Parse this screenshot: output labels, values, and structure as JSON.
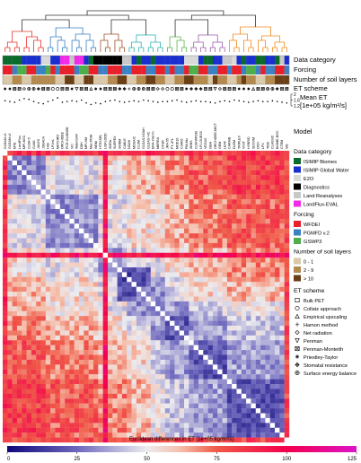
{
  "chart_data": {
    "type": "heatmap",
    "n_models": 60,
    "column_labels": [
      "GLEAM v3",
      "GLEAM v2",
      "MTE",
      "LandFlux",
      "MPI-BGC",
      "CLM4.5",
      "CLM4",
      "JULES",
      "JSBACH",
      "H08",
      "LPJmL",
      "MATSIRO",
      "ORCHIDEE",
      "PCR-GLOBWB",
      "VIC",
      "WaterGAP",
      "DBH",
      "MPI-HM",
      "Mac-PDM",
      "WBM",
      "HTESSEL",
      "LISFLOOD",
      "W3RA",
      "SURFEX",
      "SWBM",
      "CABLE",
      "NOAH",
      "MOSAIC",
      "CLSM",
      "GLDAS-NOAH",
      "GLDAS-VIC",
      "ERA-Interim",
      "MERRA",
      "CFSR",
      "JRA-55",
      "PT-JPL",
      "MOD16",
      "CSIRO",
      "PM-Mu",
      "SEBS",
      "CLM-WFDEI",
      "LPJ-GUESS",
      "VEGAS",
      "ISBA",
      "ORCHIDEE-MICT",
      "GEM",
      "LEAF",
      "CARAIB",
      "DLEM",
      "TRIPLEX",
      "VISIT",
      "HYBRID",
      "SDGVM",
      "OCN",
      "LPX",
      "TEM",
      "CLASSIC",
      "BIOME-BGC",
      "CTEM",
      "SiB"
    ],
    "rows": [
      "Data category",
      "Forcing",
      "Number of soil layers",
      "ET scheme",
      "Mean ET\n[1e+05 kg/m²/s]"
    ],
    "matrix_title": "Model",
    "colorbar_label": "Euclidean differences in ET [1e+05 kg/m²/s]",
    "colorbar_ticks": [
      0,
      25,
      50,
      75,
      100,
      125
    ],
    "colorbar_range": [
      0,
      125
    ],
    "mean_et_axis_ticks": [
      1.2,
      1.6,
      2
    ],
    "clusters": [
      {
        "start": 0,
        "end": 9,
        "color": "#e5362b"
      },
      {
        "start": 9,
        "end": 20,
        "color": "#3a7fc0"
      },
      {
        "start": 20,
        "end": 26,
        "color": "#a0522d"
      },
      {
        "start": 26,
        "end": 34,
        "color": "#2ab3b0"
      },
      {
        "start": 34,
        "end": 39,
        "color": "#5eb14e"
      },
      {
        "start": 39,
        "end": 47,
        "color": "#9b5ea8"
      },
      {
        "start": 47,
        "end": 60,
        "color": "#ef8a1f"
      }
    ],
    "data_category": [
      0,
      0,
      0,
      0,
      1,
      1,
      1,
      1,
      2,
      2,
      1,
      1,
      5,
      5,
      4,
      5,
      5,
      1,
      0,
      3,
      3,
      3,
      3,
      3,
      3,
      4,
      4,
      1,
      0,
      1,
      1,
      0,
      1,
      1,
      1,
      1,
      1,
      1,
      2,
      2,
      2,
      1,
      0,
      0,
      1,
      1,
      4,
      4,
      2,
      1,
      0,
      1,
      1,
      0,
      0,
      1,
      1,
      0,
      4,
      1
    ],
    "forcing": [
      0,
      0,
      1,
      2,
      2,
      0,
      0,
      1,
      1,
      2,
      0,
      1,
      0,
      0,
      0,
      1,
      2,
      2,
      0,
      0,
      1,
      1,
      0,
      0,
      0,
      1,
      1,
      0,
      0,
      0,
      1,
      1,
      0,
      0,
      1,
      0,
      1,
      1,
      0,
      2,
      2,
      0,
      0,
      1,
      1,
      0,
      0,
      1,
      0,
      0,
      1,
      2,
      2,
      1,
      0,
      1,
      1,
      0,
      0,
      1
    ],
    "soil_layers": [
      0,
      0,
      1,
      1,
      0,
      0,
      1,
      1,
      1,
      1,
      1,
      0,
      0,
      2,
      2,
      0,
      0,
      2,
      2,
      0,
      0,
      0,
      1,
      1,
      2,
      2,
      0,
      0,
      1,
      1,
      2,
      2,
      1,
      1,
      0,
      0,
      1,
      1,
      2,
      2,
      1,
      1,
      1,
      0,
      2,
      1,
      1,
      0,
      0,
      1,
      2,
      1,
      1,
      0,
      0,
      1,
      1,
      2,
      2,
      2
    ],
    "et_scheme": [
      7,
      7,
      6,
      6,
      4,
      9,
      9,
      8,
      6,
      6,
      1,
      1,
      6,
      6,
      7,
      5,
      6,
      6,
      2,
      7,
      7,
      6,
      6,
      6,
      8,
      8,
      3,
      9,
      9,
      9,
      6,
      6,
      4,
      4,
      1,
      1,
      6,
      6,
      7,
      8,
      8,
      8,
      6,
      6,
      5,
      4,
      6,
      6,
      6,
      7,
      7,
      7,
      2,
      6,
      6,
      9,
      9,
      8,
      6,
      6
    ],
    "mean_et": [
      1.55,
      1.5,
      1.45,
      1.6,
      1.7,
      1.65,
      1.5,
      1.4,
      1.35,
      1.5,
      1.6,
      1.75,
      1.45,
      1.5,
      1.55,
      1.5,
      1.6,
      1.4,
      1.3,
      1.4,
      1.35,
      1.5,
      1.55,
      1.6,
      1.5,
      1.45,
      1.5,
      1.55,
      1.5,
      1.6,
      1.55,
      1.5,
      1.45,
      1.5,
      1.5,
      1.55,
      1.6,
      1.5,
      1.45,
      1.5,
      1.55,
      1.5,
      1.5,
      1.45,
      1.4,
      1.5,
      1.55,
      1.5,
      1.6,
      1.55,
      1.5,
      1.45,
      1.5,
      1.55,
      1.5,
      1.5,
      1.55,
      1.5,
      1.45,
      1.4
    ],
    "legends": {
      "data_category": {
        "title": "Data category",
        "items": [
          {
            "label": "ISIMIP Biomes",
            "color": "#0b6b2a"
          },
          {
            "label": "ISIMIP Global Water",
            "color": "#1a2fd0"
          },
          {
            "label": "E2O",
            "color": "#d9d9d9"
          },
          {
            "label": "Diagnostics",
            "color": "#000000"
          },
          {
            "label": "Land Reanalyses",
            "color": "#c8c8c8"
          },
          {
            "label": "LandFlux-EVAL",
            "color": "#f02be8"
          }
        ]
      },
      "forcing": {
        "title": "Forcing",
        "items": [
          {
            "label": "WFDEI",
            "color": "#e8202a"
          },
          {
            "label": "PGMFD v.2",
            "color": "#3b82c4"
          },
          {
            "label": "GSWP3",
            "color": "#4eae4a"
          }
        ]
      },
      "soil_layers": {
        "title": "Number of soil layers",
        "items": [
          {
            "label": "0 - 1",
            "color": "#d9c9a9"
          },
          {
            "label": "2 - 9",
            "color": "#b48a4f"
          },
          {
            "label": "> 10",
            "color": "#6b3f16"
          }
        ]
      },
      "et_scheme": {
        "title": "ET scheme",
        "items": [
          {
            "label": "Bulk PET",
            "symbol": "square"
          },
          {
            "label": "Collatz approach",
            "symbol": "circle"
          },
          {
            "label": "Empirical upscaling",
            "symbol": "triangle-up"
          },
          {
            "label": "Hamon method",
            "symbol": "plus"
          },
          {
            "label": "Net radiation",
            "symbol": "diamond"
          },
          {
            "label": "Penman",
            "symbol": "triangle-down"
          },
          {
            "label": "Penman-Monteith",
            "symbol": "boxed-x"
          },
          {
            "label": "Priestley-Taylor",
            "symbol": "asterisk"
          },
          {
            "label": "Stomatal resistance",
            "symbol": "diamond-plus"
          },
          {
            "label": "Surface energy balance",
            "symbol": "circle-plus"
          }
        ]
      }
    }
  }
}
